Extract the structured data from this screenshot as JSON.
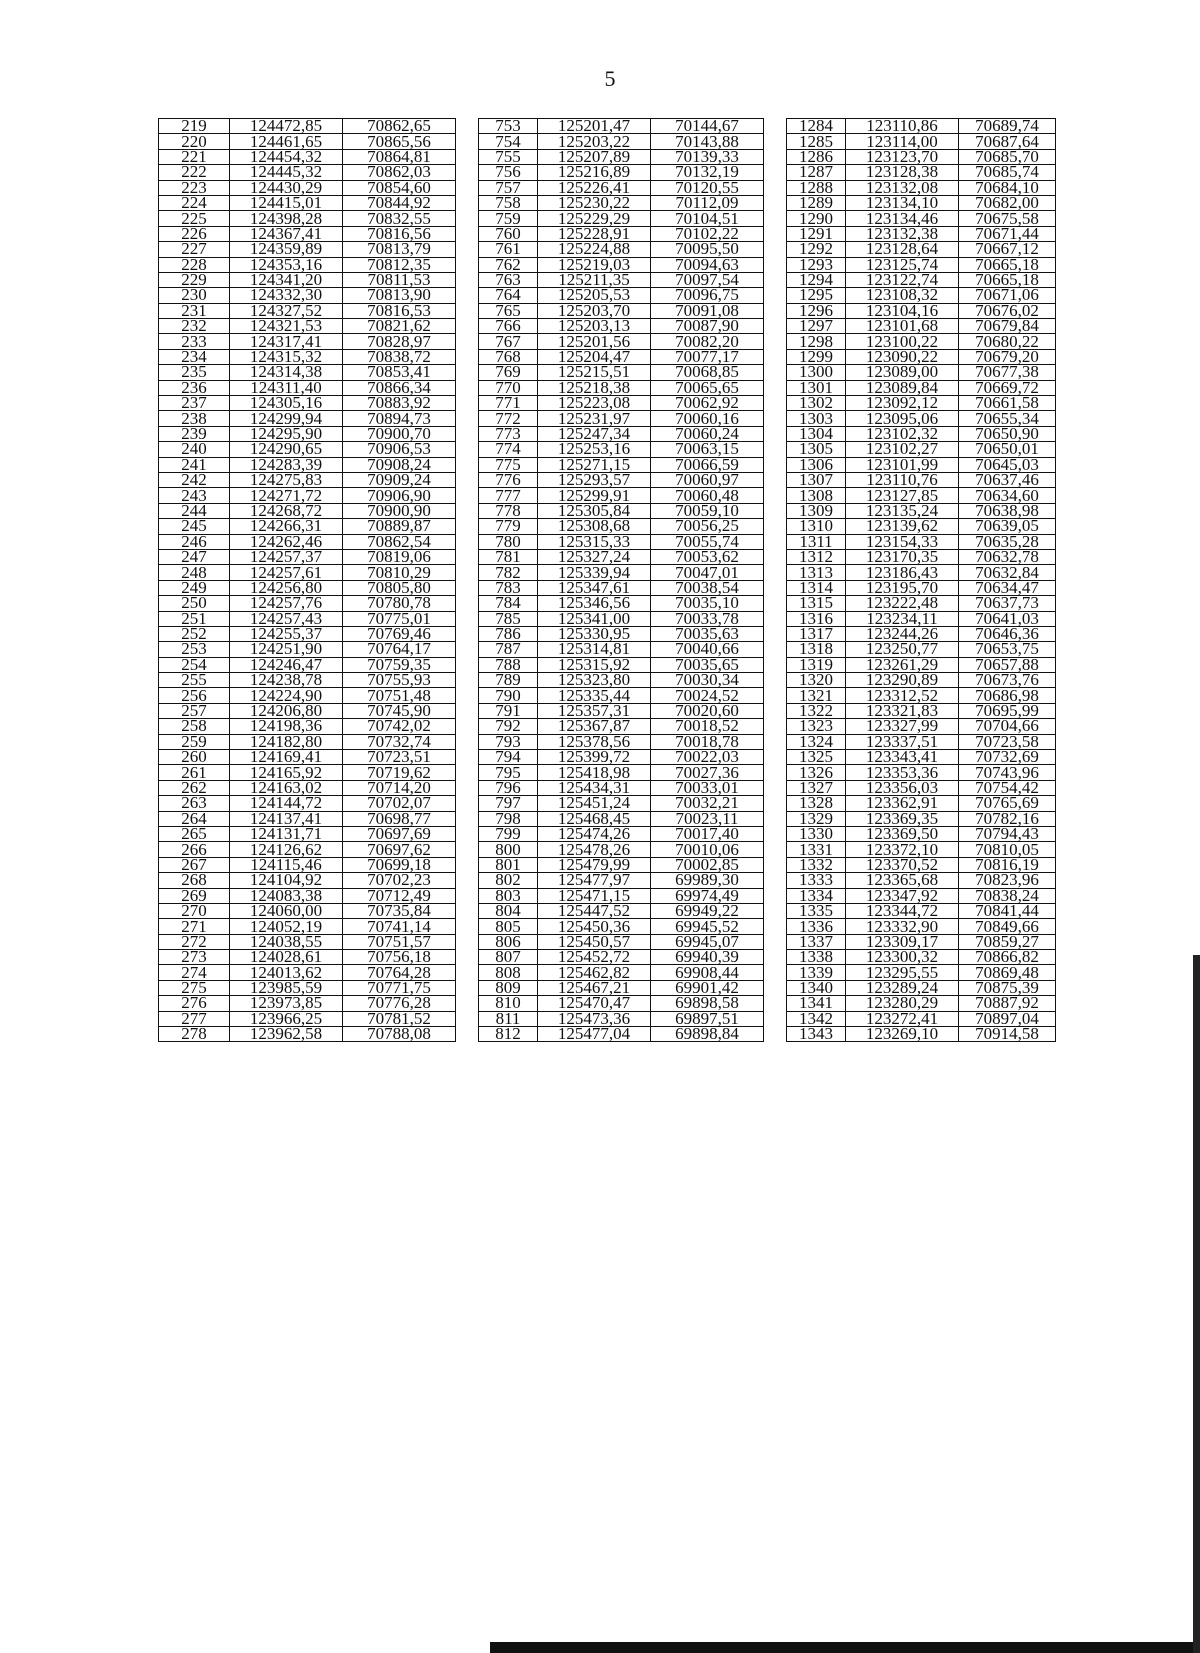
{
  "page_number": "5",
  "groups": [
    {
      "rows": [
        [
          "219",
          "124472,85",
          "70862,65"
        ],
        [
          "220",
          "124461,65",
          "70865,56"
        ],
        [
          "221",
          "124454,32",
          "70864,81"
        ],
        [
          "222",
          "124445,32",
          "70862,03"
        ],
        [
          "223",
          "124430,29",
          "70854,60"
        ],
        [
          "224",
          "124415,01",
          "70844,92"
        ],
        [
          "225",
          "124398,28",
          "70832,55"
        ],
        [
          "226",
          "124367,41",
          "70816,56"
        ],
        [
          "227",
          "124359,89",
          "70813,79"
        ],
        [
          "228",
          "124353,16",
          "70812,35"
        ],
        [
          "229",
          "124341,20",
          "70811,53"
        ],
        [
          "230",
          "124332,30",
          "70813,90"
        ],
        [
          "231",
          "124327,52",
          "70816,53"
        ],
        [
          "232",
          "124321,53",
          "70821,62"
        ],
        [
          "233",
          "124317,41",
          "70828,97"
        ],
        [
          "234",
          "124315,32",
          "70838,72"
        ],
        [
          "235",
          "124314,38",
          "70853,41"
        ],
        [
          "236",
          "124311,40",
          "70866,34"
        ],
        [
          "237",
          "124305,16",
          "70883,92"
        ],
        [
          "238",
          "124299,94",
          "70894,73"
        ],
        [
          "239",
          "124295,90",
          "70900,70"
        ],
        [
          "240",
          "124290,65",
          "70906,53"
        ],
        [
          "241",
          "124283,39",
          "70908,24"
        ],
        [
          "242",
          "124275,83",
          "70909,24"
        ],
        [
          "243",
          "124271,72",
          "70906,90"
        ],
        [
          "244",
          "124268,72",
          "70900,90"
        ],
        [
          "245",
          "124266,31",
          "70889,87"
        ],
        [
          "246",
          "124262,46",
          "70862,54"
        ],
        [
          "247",
          "124257,37",
          "70819,06"
        ],
        [
          "248",
          "124257,61",
          "70810,29"
        ],
        [
          "249",
          "124256,80",
          "70805,80"
        ],
        [
          "250",
          "124257,76",
          "70780,78"
        ],
        [
          "251",
          "124257,43",
          "70775,01"
        ],
        [
          "252",
          "124255,37",
          "70769,46"
        ],
        [
          "253",
          "124251,90",
          "70764,17"
        ],
        [
          "254",
          "124246,47",
          "70759,35"
        ],
        [
          "255",
          "124238,78",
          "70755,93"
        ],
        [
          "256",
          "124224,90",
          "70751,48"
        ],
        [
          "257",
          "124206,80",
          "70745,90"
        ],
        [
          "258",
          "124198,36",
          "70742,02"
        ],
        [
          "259",
          "124182,80",
          "70732,74"
        ],
        [
          "260",
          "124169,41",
          "70723,51"
        ],
        [
          "261",
          "124165,92",
          "70719,62"
        ],
        [
          "262",
          "124163,02",
          "70714,20"
        ],
        [
          "263",
          "124144,72",
          "70702,07"
        ],
        [
          "264",
          "124137,41",
          "70698,77"
        ],
        [
          "265",
          "124131,71",
          "70697,69"
        ],
        [
          "266",
          "124126,62",
          "70697,62"
        ],
        [
          "267",
          "124115,46",
          "70699,18"
        ],
        [
          "268",
          "124104,92",
          "70702,23"
        ],
        [
          "269",
          "124083,38",
          "70712,49"
        ],
        [
          "270",
          "124060,00",
          "70735,84"
        ],
        [
          "271",
          "124052,19",
          "70741,14"
        ],
        [
          "272",
          "124038,55",
          "70751,57"
        ],
        [
          "273",
          "124028,61",
          "70756,18"
        ],
        [
          "274",
          "124013,62",
          "70764,28"
        ],
        [
          "275",
          "123985,59",
          "70771,75"
        ],
        [
          "276",
          "123973,85",
          "70776,28"
        ],
        [
          "277",
          "123966,25",
          "70781,52"
        ],
        [
          "278",
          "123962,58",
          "70788,08"
        ]
      ]
    },
    {
      "rows": [
        [
          "753",
          "125201,47",
          "70144,67"
        ],
        [
          "754",
          "125203,22",
          "70143,88"
        ],
        [
          "755",
          "125207,89",
          "70139,33"
        ],
        [
          "756",
          "125216,89",
          "70132,19"
        ],
        [
          "757",
          "125226,41",
          "70120,55"
        ],
        [
          "758",
          "125230,22",
          "70112,09"
        ],
        [
          "759",
          "125229,29",
          "70104,51"
        ],
        [
          "760",
          "125228,91",
          "70102,22"
        ],
        [
          "761",
          "125224,88",
          "70095,50"
        ],
        [
          "762",
          "125219,03",
          "70094,63"
        ],
        [
          "763",
          "125211,35",
          "70097,54"
        ],
        [
          "764",
          "125205,53",
          "70096,75"
        ],
        [
          "765",
          "125203,70",
          "70091,08"
        ],
        [
          "766",
          "125203,13",
          "70087,90"
        ],
        [
          "767",
          "125201,56",
          "70082,20"
        ],
        [
          "768",
          "125204,47",
          "70077,17"
        ],
        [
          "769",
          "125215,51",
          "70068,85"
        ],
        [
          "770",
          "125218,38",
          "70065,65"
        ],
        [
          "771",
          "125223,08",
          "70062,92"
        ],
        [
          "772",
          "125231,97",
          "70060,16"
        ],
        [
          "773",
          "125247,34",
          "70060,24"
        ],
        [
          "774",
          "125253,16",
          "70063,15"
        ],
        [
          "775",
          "125271,15",
          "70066,59"
        ],
        [
          "776",
          "125293,57",
          "70060,97"
        ],
        [
          "777",
          "125299,91",
          "70060,48"
        ],
        [
          "778",
          "125305,84",
          "70059,10"
        ],
        [
          "779",
          "125308,68",
          "70056,25"
        ],
        [
          "780",
          "125315,33",
          "70055,74"
        ],
        [
          "781",
          "125327,24",
          "70053,62"
        ],
        [
          "782",
          "125339,94",
          "70047,01"
        ],
        [
          "783",
          "125347,61",
          "70038,54"
        ],
        [
          "784",
          "125346,56",
          "70035,10"
        ],
        [
          "785",
          "125341,00",
          "70033,78"
        ],
        [
          "786",
          "125330,95",
          "70035,63"
        ],
        [
          "787",
          "125314,81",
          "70040,66"
        ],
        [
          "788",
          "125315,92",
          "70035,65"
        ],
        [
          "789",
          "125323,80",
          "70030,34"
        ],
        [
          "790",
          "125335,44",
          "70024,52"
        ],
        [
          "791",
          "125357,31",
          "70020,60"
        ],
        [
          "792",
          "125367,87",
          "70018,52"
        ],
        [
          "793",
          "125378,56",
          "70018,78"
        ],
        [
          "794",
          "125399,72",
          "70022,03"
        ],
        [
          "795",
          "125418,98",
          "70027,36"
        ],
        [
          "796",
          "125434,31",
          "70033,01"
        ],
        [
          "797",
          "125451,24",
          "70032,21"
        ],
        [
          "798",
          "125468,45",
          "70023,11"
        ],
        [
          "799",
          "125474,26",
          "70017,40"
        ],
        [
          "800",
          "125478,26",
          "70010,06"
        ],
        [
          "801",
          "125479,99",
          "70002,85"
        ],
        [
          "802",
          "125477,97",
          "69989,30"
        ],
        [
          "803",
          "125471,15",
          "69974,49"
        ],
        [
          "804",
          "125447,52",
          "69949,22"
        ],
        [
          "805",
          "125450,36",
          "69945,52"
        ],
        [
          "806",
          "125450,57",
          "69945,07"
        ],
        [
          "807",
          "125452,72",
          "69940,39"
        ],
        [
          "808",
          "125462,82",
          "69908,44"
        ],
        [
          "809",
          "125467,21",
          "69901,42"
        ],
        [
          "810",
          "125470,47",
          "69898,58"
        ],
        [
          "811",
          "125473,36",
          "69897,51"
        ],
        [
          "812",
          "125477,04",
          "69898,84"
        ]
      ]
    },
    {
      "rows": [
        [
          "1284",
          "123110,86",
          "70689,74"
        ],
        [
          "1285",
          "123114,00",
          "70687,64"
        ],
        [
          "1286",
          "123123,70",
          "70685,70"
        ],
        [
          "1287",
          "123128,38",
          "70685,74"
        ],
        [
          "1288",
          "123132,08",
          "70684,10"
        ],
        [
          "1289",
          "123134,10",
          "70682,00"
        ],
        [
          "1290",
          "123134,46",
          "70675,58"
        ],
        [
          "1291",
          "123132,38",
          "70671,44"
        ],
        [
          "1292",
          "123128,64",
          "70667,12"
        ],
        [
          "1293",
          "123125,74",
          "70665,18"
        ],
        [
          "1294",
          "123122,74",
          "70665,18"
        ],
        [
          "1295",
          "123108,32",
          "70671,06"
        ],
        [
          "1296",
          "123104,16",
          "70676,02"
        ],
        [
          "1297",
          "123101,68",
          "70679,84"
        ],
        [
          "1298",
          "123100,22",
          "70680,22"
        ],
        [
          "1299",
          "123090,22",
          "70679,20"
        ],
        [
          "1300",
          "123089,00",
          "70677,38"
        ],
        [
          "1301",
          "123089,84",
          "70669,72"
        ],
        [
          "1302",
          "123092,12",
          "70661,58"
        ],
        [
          "1303",
          "123095,06",
          "70655,34"
        ],
        [
          "1304",
          "123102,32",
          "70650,90"
        ],
        [
          "1305",
          "123102,27",
          "70650,01"
        ],
        [
          "1306",
          "123101,99",
          "70645,03"
        ],
        [
          "1307",
          "123110,76",
          "70637,46"
        ],
        [
          "1308",
          "123127,85",
          "70634,60"
        ],
        [
          "1309",
          "123135,24",
          "70638,98"
        ],
        [
          "1310",
          "123139,62",
          "70639,05"
        ],
        [
          "1311",
          "123154,33",
          "70635,28"
        ],
        [
          "1312",
          "123170,35",
          "70632,78"
        ],
        [
          "1313",
          "123186,43",
          "70632,84"
        ],
        [
          "1314",
          "123195,70",
          "70634,47"
        ],
        [
          "1315",
          "123222,48",
          "70637,73"
        ],
        [
          "1316",
          "123234,11",
          "70641,03"
        ],
        [
          "1317",
          "123244,26",
          "70646,36"
        ],
        [
          "1318",
          "123250,77",
          "70653,75"
        ],
        [
          "1319",
          "123261,29",
          "70657,88"
        ],
        [
          "1320",
          "123290,89",
          "70673,76"
        ],
        [
          "1321",
          "123312,52",
          "70686,98"
        ],
        [
          "1322",
          "123321,83",
          "70695,99"
        ],
        [
          "1323",
          "123327,99",
          "70704,66"
        ],
        [
          "1324",
          "123337,51",
          "70723,58"
        ],
        [
          "1325",
          "123343,41",
          "70732,69"
        ],
        [
          "1326",
          "123353,36",
          "70743,96"
        ],
        [
          "1327",
          "123356,03",
          "70754,42"
        ],
        [
          "1328",
          "123362,91",
          "70765,69"
        ],
        [
          "1329",
          "123369,35",
          "70782,16"
        ],
        [
          "1330",
          "123369,50",
          "70794,43"
        ],
        [
          "1331",
          "123372,10",
          "70810,05"
        ],
        [
          "1332",
          "123370,52",
          "70816,19"
        ],
        [
          "1333",
          "123365,68",
          "70823,96"
        ],
        [
          "1334",
          "123347,92",
          "70838,24"
        ],
        [
          "1335",
          "123344,72",
          "70841,44"
        ],
        [
          "1336",
          "123332,90",
          "70849,66"
        ],
        [
          "1337",
          "123309,17",
          "70859,27"
        ],
        [
          "1338",
          "123300,32",
          "70866,82"
        ],
        [
          "1339",
          "123295,55",
          "70869,48"
        ],
        [
          "1340",
          "123289,24",
          "70875,39"
        ],
        [
          "1341",
          "123280,29",
          "70887,92"
        ],
        [
          "1342",
          "123272,41",
          "70897,04"
        ],
        [
          "1343",
          "123269,10",
          "70914,58"
        ]
      ]
    }
  ]
}
